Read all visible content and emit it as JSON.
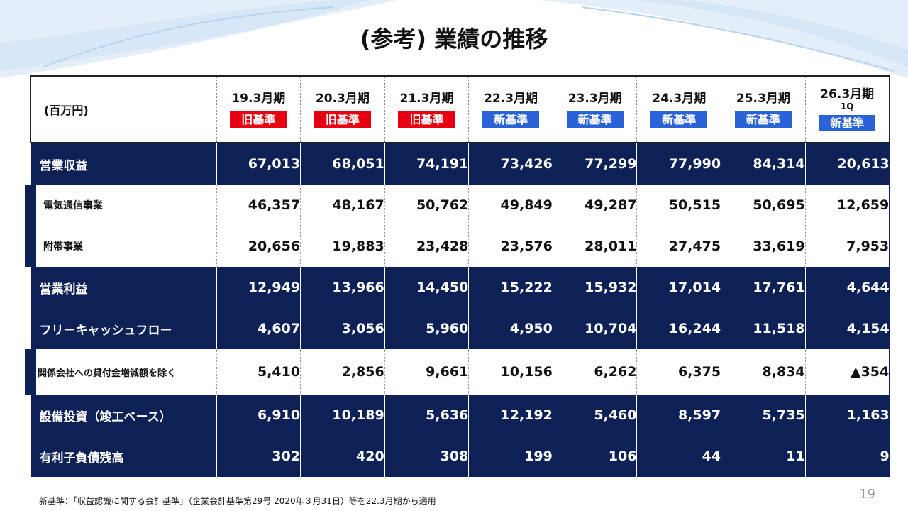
{
  "title": "(参考) 業績の推移",
  "table": {
    "unit": "(百万円)",
    "periods": [
      {
        "label": "19.3月期",
        "sub": "",
        "standard": "旧基準",
        "kind": "old"
      },
      {
        "label": "20.3月期",
        "sub": "",
        "standard": "旧基準",
        "kind": "old"
      },
      {
        "label": "21.3月期",
        "sub": "",
        "standard": "旧基準",
        "kind": "old"
      },
      {
        "label": "22.3月期",
        "sub": "",
        "standard": "新基準",
        "kind": "new"
      },
      {
        "label": "23.3月期",
        "sub": "",
        "standard": "新基準",
        "kind": "new"
      },
      {
        "label": "24.3月期",
        "sub": "",
        "standard": "新基準",
        "kind": "new"
      },
      {
        "label": "25.3月期",
        "sub": "",
        "standard": "新基準",
        "kind": "new"
      },
      {
        "label": "26.3月期",
        "sub": "1Q",
        "standard": "新基準",
        "kind": "new"
      }
    ],
    "rows": [
      {
        "label": "営業収益",
        "style": "dark",
        "values": [
          "67,013",
          "68,051",
          "74,191",
          "73,426",
          "77,299",
          "77,990",
          "84,314",
          "20,613"
        ]
      },
      {
        "label": "電気通信事業",
        "style": "sub",
        "values": [
          "46,357",
          "48,167",
          "50,762",
          "49,849",
          "49,287",
          "50,515",
          "50,695",
          "12,659"
        ]
      },
      {
        "label": "附帯事業",
        "style": "sub",
        "values": [
          "20,656",
          "19,883",
          "23,428",
          "23,576",
          "28,011",
          "27,475",
          "33,619",
          "7,953"
        ]
      },
      {
        "label": "営業利益",
        "style": "dark",
        "values": [
          "12,949",
          "13,966",
          "14,450",
          "15,222",
          "15,932",
          "17,014",
          "17,761",
          "4,644"
        ]
      },
      {
        "label": "フリーキャッシュフロー",
        "style": "dark",
        "values": [
          "4,607",
          "3,056",
          "5,960",
          "4,950",
          "10,704",
          "16,244",
          "11,518",
          "4,154"
        ]
      },
      {
        "label": "関係会社への貸付金増減額を除く",
        "style": "sub-tight",
        "values": [
          "5,410",
          "2,856",
          "9,661",
          "10,156",
          "6,262",
          "6,375",
          "8,834",
          "▲354"
        ]
      },
      {
        "label": "設備投資（竣工ベース）",
        "style": "dark",
        "values": [
          "6,910",
          "10,189",
          "5,636",
          "12,192",
          "5,460",
          "8,597",
          "5,735",
          "1,163"
        ]
      },
      {
        "label": "有利子負債残高",
        "style": "dark",
        "values": [
          "302",
          "420",
          "308",
          "199",
          "106",
          "44",
          "11",
          "9"
        ]
      }
    ]
  },
  "footnote": "新基準：「収益認識に関する会計基準」（企業会計基準第29号 2020年３月31日）等を22.3月期から適用",
  "page_number": "19",
  "colors": {
    "navy": "#0e2157",
    "old_badge": "#e60012",
    "new_badge": "#2a63d8"
  }
}
